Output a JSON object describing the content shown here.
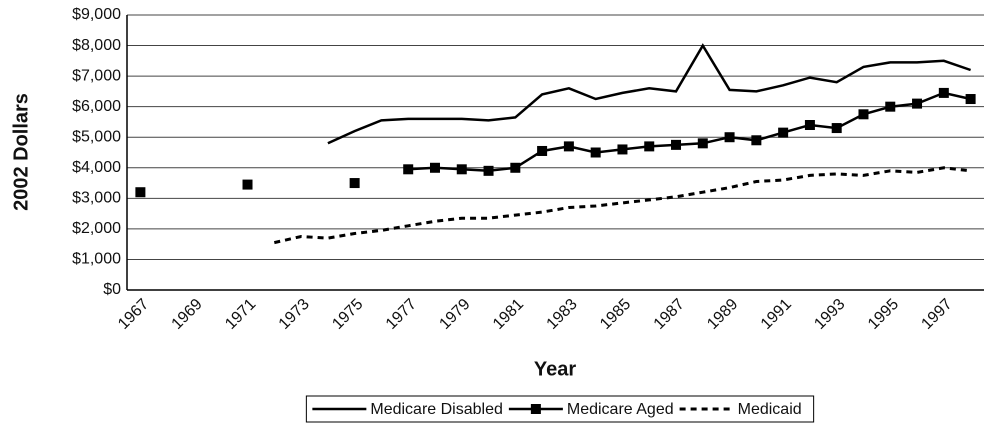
{
  "chart_data": {
    "type": "line",
    "ylabel": "2002 Dollars",
    "xlabel": "Year",
    "categories": [
      "1967",
      null,
      "1969",
      null,
      "1971",
      null,
      "1973",
      null,
      "1975",
      null,
      "1977",
      null,
      "1979",
      null,
      "1981",
      null,
      "1983",
      null,
      "1985",
      null,
      "1987",
      null,
      "1989",
      null,
      "1991",
      null,
      "1993",
      null,
      "1995",
      null,
      "1997",
      null
    ],
    "series": [
      {
        "name": "Medicare Disabled",
        "color": "#000000",
        "style": "solid",
        "marker": "none",
        "values": [
          null,
          null,
          null,
          null,
          null,
          null,
          null,
          4800,
          5200,
          5550,
          5600,
          5600,
          5600,
          5550,
          5650,
          6400,
          6600,
          6250,
          6450,
          6600,
          6500,
          8000,
          6550,
          6500,
          6700,
          6950,
          6800,
          7300,
          7450,
          7450,
          7500,
          7200
        ]
      },
      {
        "name": "Medicare Aged",
        "color": "#000000",
        "style": "solid",
        "marker": "square",
        "values": [
          3200,
          null,
          null,
          null,
          3450,
          null,
          null,
          null,
          3500,
          null,
          3950,
          4000,
          3950,
          3900,
          4000,
          4550,
          4700,
          4500,
          4600,
          4700,
          4750,
          4800,
          5000,
          4900,
          5150,
          5400,
          5300,
          5750,
          6000,
          6100,
          6450,
          6250
        ]
      },
      {
        "name": "Medicaid",
        "color": "#000000",
        "style": "dashed",
        "marker": "none",
        "values": [
          null,
          null,
          null,
          null,
          null,
          1550,
          1750,
          1700,
          1850,
          1950,
          2100,
          2250,
          2350,
          2350,
          2450,
          2550,
          2700,
          2750,
          2850,
          2950,
          3050,
          3200,
          3350,
          3550,
          3600,
          3750,
          3800,
          3750,
          3900,
          3850,
          4000,
          3900
        ]
      }
    ],
    "ylim": [
      0,
      9000
    ],
    "yticks": [
      {
        "value": 0,
        "label": "$0"
      },
      {
        "value": 1000,
        "label": "$1,000"
      },
      {
        "value": 2000,
        "label": "$2,000"
      },
      {
        "value": 3000,
        "label": "$3,000"
      },
      {
        "value": 4000,
        "label": "$4,000"
      },
      {
        "value": 5000,
        "label": "$5,000"
      },
      {
        "value": 6000,
        "label": "$6,000"
      },
      {
        "value": 7000,
        "label": "$7,000"
      },
      {
        "value": 8000,
        "label": "$8,000"
      },
      {
        "value": 9000,
        "label": "$9,000"
      }
    ],
    "grid": true,
    "legend": "bottom"
  }
}
